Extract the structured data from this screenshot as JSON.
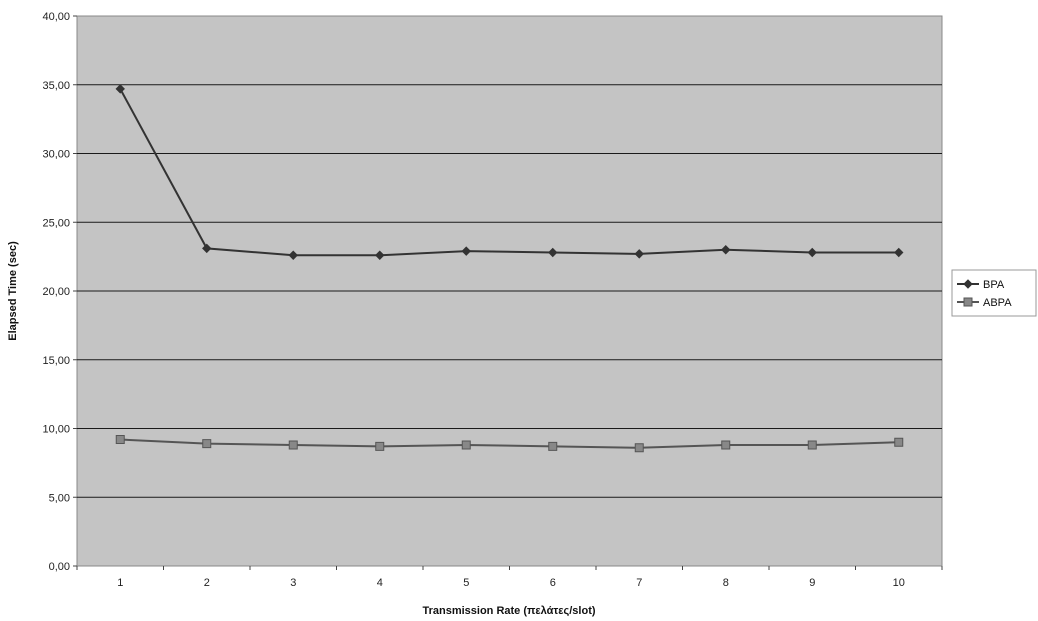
{
  "chart_data": {
    "type": "line",
    "title": "",
    "xlabel": "Transmission Rate (πελάτες/slot)",
    "ylabel": "Elapsed Time (sec)",
    "categories": [
      "1",
      "2",
      "3",
      "4",
      "5",
      "6",
      "7",
      "8",
      "9",
      "10"
    ],
    "ylim": [
      0,
      40
    ],
    "yticks": [
      "0,00",
      "5,00",
      "10,00",
      "15,00",
      "20,00",
      "25,00",
      "30,00",
      "35,00",
      "40,00"
    ],
    "grid": true,
    "legend": "right",
    "plot_background": "#c4c4c4",
    "series": [
      {
        "name": "BPA",
        "marker": "diamond",
        "color": "#333333",
        "values": [
          34.7,
          23.1,
          22.6,
          22.6,
          22.9,
          22.8,
          22.7,
          23.0,
          22.8,
          22.8
        ]
      },
      {
        "name": "ABPA",
        "marker": "square",
        "color": "#555555",
        "values": [
          9.2,
          8.9,
          8.8,
          8.7,
          8.8,
          8.7,
          8.6,
          8.8,
          8.8,
          9.0
        ]
      }
    ]
  }
}
